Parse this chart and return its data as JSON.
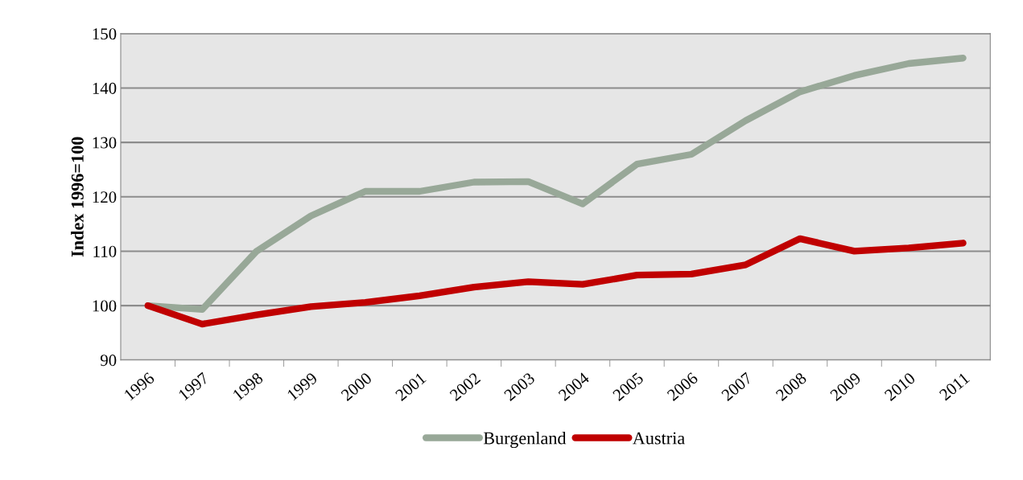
{
  "chart_data": {
    "type": "line",
    "ylabel": "Index 1996=100",
    "categories": [
      "1996",
      "1997",
      "1998",
      "1999",
      "2000",
      "2001",
      "2002",
      "2003",
      "2004",
      "2005",
      "2006",
      "2007",
      "2008",
      "2009",
      "2010",
      "2011"
    ],
    "series": [
      {
        "name": "Burgenland",
        "color": "#98a898",
        "values": [
          100,
          99.3,
          110,
          116.5,
          121,
          121,
          122.7,
          122.8,
          118.7,
          126,
          127.8,
          134,
          139.3,
          142.3,
          144.5,
          145.5
        ]
      },
      {
        "name": "Austria",
        "color": "#c00000",
        "values": [
          100,
          96.6,
          98.3,
          99.8,
          100.6,
          101.8,
          103.4,
          104.4,
          103.9,
          105.6,
          105.8,
          107.5,
          112.3,
          110,
          110.6,
          111.5
        ]
      }
    ],
    "ylim": [
      90,
      150
    ],
    "yticks": [
      90,
      100,
      110,
      120,
      130,
      140,
      150
    ],
    "grid": "y",
    "legend": "bottom",
    "marker": "none",
    "line_style": "solid"
  }
}
